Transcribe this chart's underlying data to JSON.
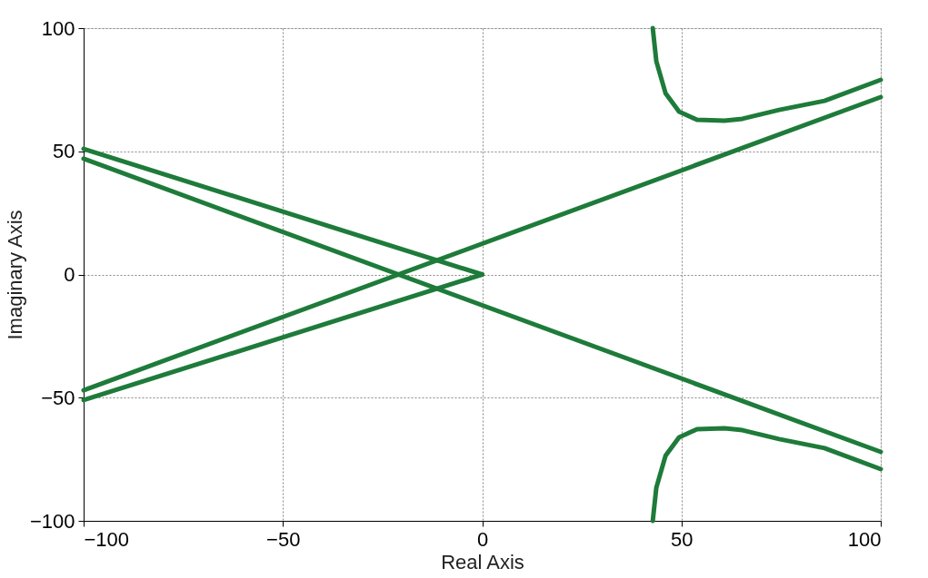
{
  "chart_data": {
    "type": "line",
    "xlabel": "Real Axis",
    "ylabel": "Imaginary Axis",
    "xlim": [
      -100,
      100
    ],
    "ylim": [
      -100,
      100
    ],
    "xticks": [
      -100,
      -50,
      0,
      50,
      100
    ],
    "yticks": [
      -100,
      -50,
      0,
      50,
      100
    ],
    "grid": true,
    "line_style": "solid",
    "marker": "none",
    "series": [
      {
        "color": "#1e7b3a",
        "x": [
          -100,
          0
        ],
        "values": [
          51,
          0
        ]
      },
      {
        "color": "#1e7b3a",
        "x": [
          -100,
          0
        ],
        "values": [
          -51,
          0
        ]
      },
      {
        "color": "#1e7b3a",
        "x": [
          -100,
          100
        ],
        "values": [
          47,
          -72
        ]
      },
      {
        "color": "#1e7b3a",
        "x": [
          -100,
          100
        ],
        "values": [
          -47,
          72
        ]
      },
      {
        "color": "#1e7b3a",
        "x": [
          42.8,
          43.7,
          46,
          49.4,
          53.9,
          60.8,
          65.3,
          74.5,
          85.9,
          100
        ],
        "values": [
          100,
          86.5,
          73.6,
          66.1,
          62.8,
          62.4,
          63.2,
          66.8,
          70.5,
          79
        ]
      },
      {
        "color": "#1e7b3a",
        "x": [
          42.8,
          43.7,
          46,
          49.4,
          53.9,
          60.8,
          65.3,
          74.5,
          85.9,
          100
        ],
        "values": [
          -100,
          -86.5,
          -73.6,
          -66.1,
          -62.8,
          -62.4,
          -63.2,
          -66.8,
          -70.5,
          -79
        ]
      }
    ]
  }
}
